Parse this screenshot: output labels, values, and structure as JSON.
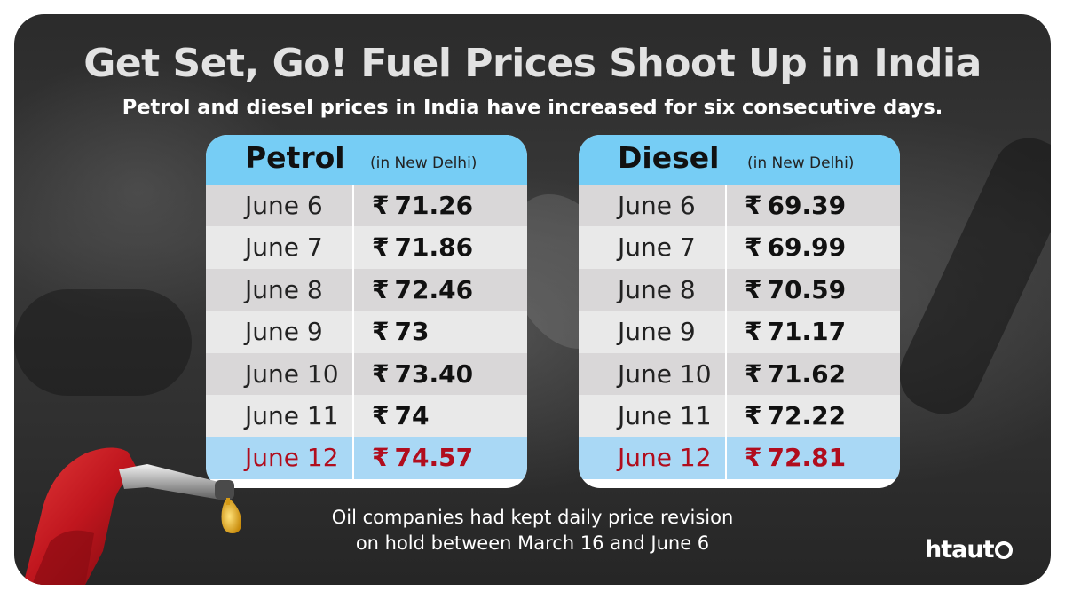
{
  "title": "Get Set, Go! Fuel Prices Shoot Up in India",
  "subtitle": "Petrol and diesel prices in India have increased for six consecutive days.",
  "currency_symbol": "₹",
  "tables": {
    "petrol": {
      "name": "Petrol",
      "location": "(in New Delhi)",
      "rows": [
        {
          "date": "June 6",
          "price": "71.26"
        },
        {
          "date": "June 7",
          "price": "71.86"
        },
        {
          "date": "June 8",
          "price": "72.46"
        },
        {
          "date": "June 9",
          "price": "73"
        },
        {
          "date": "June 10",
          "price": "73.40"
        },
        {
          "date": "June 11",
          "price": "74"
        },
        {
          "date": "June 12",
          "price": "74.57"
        }
      ]
    },
    "diesel": {
      "name": "Diesel",
      "location": "(in New Delhi)",
      "rows": [
        {
          "date": "June 6",
          "price": "69.39"
        },
        {
          "date": "June 7",
          "price": "69.99"
        },
        {
          "date": "June 8",
          "price": "70.59"
        },
        {
          "date": "June 9",
          "price": "71.17"
        },
        {
          "date": "June 10",
          "price": "71.62"
        },
        {
          "date": "June 11",
          "price": "72.22"
        },
        {
          "date": "June 12",
          "price": "72.81"
        }
      ]
    }
  },
  "footnote": {
    "line1": "Oil companies had kept daily price revision",
    "line2": "on hold between March 16 and June 6"
  },
  "logo": {
    "text_ht": "ht",
    "text_auto": "aut"
  },
  "colors": {
    "header_blue": "#76cdf5",
    "highlight_blue": "#a9d8f5",
    "highlight_red": "#b10d1d",
    "nozzle_red": "#c0161e"
  }
}
